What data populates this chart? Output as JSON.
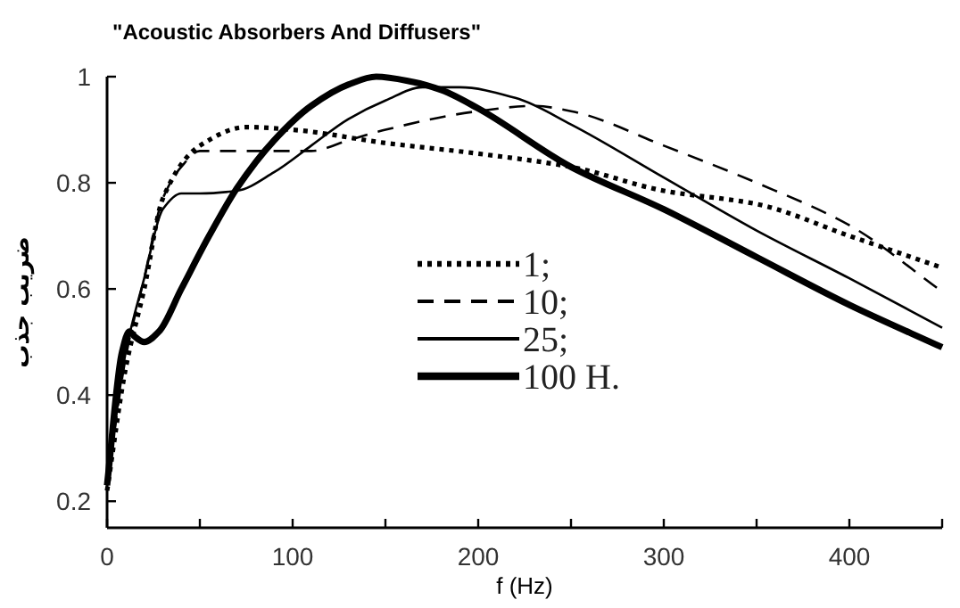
{
  "chart_data": {
    "type": "line",
    "title": "\"Acoustic Absorbers And Diffusers\"",
    "xlabel": "f (Hz)",
    "ylabel": "ضریب جذب",
    "xlim": [
      0,
      450
    ],
    "ylim": [
      0.15,
      1
    ],
    "xticks": [
      0,
      {
        "value": 50,
        "label": null
      },
      100,
      {
        "value": 150,
        "label": null
      },
      200,
      {
        "value": 250,
        "label": null
      },
      300,
      {
        "value": 350,
        "label": null
      },
      400,
      {
        "value": 450,
        "label": null
      }
    ],
    "yticks": [
      0.2,
      0.4,
      0.6,
      0.8,
      1
    ],
    "grid": false,
    "legend": "center",
    "series": [
      {
        "name": "1;",
        "color": "#000000",
        "line_style": "dotted",
        "x": [
          0,
          10,
          20,
          30,
          50,
          75,
          100,
          150,
          200,
          250,
          300,
          350,
          400,
          450
        ],
        "values": [
          0.22,
          0.45,
          0.6,
          0.77,
          0.87,
          0.905,
          0.9,
          0.875,
          0.855,
          0.83,
          0.785,
          0.76,
          0.7,
          0.64
        ]
      },
      {
        "name": "10;",
        "color": "#000000",
        "line_style": "dashed",
        "x": [
          0,
          10,
          20,
          30,
          40,
          50,
          80,
          110,
          130,
          150,
          200,
          230,
          250,
          300,
          350,
          400,
          450
        ],
        "values": [
          0.23,
          0.47,
          0.62,
          0.77,
          0.83,
          0.86,
          0.86,
          0.86,
          0.88,
          0.9,
          0.935,
          0.945,
          0.935,
          0.87,
          0.8,
          0.72,
          0.595
        ]
      },
      {
        "name": "25;",
        "color": "#000000",
        "line_style": "solid",
        "x": [
          0,
          10,
          20,
          30,
          40,
          50,
          70,
          90,
          110,
          130,
          150,
          170,
          190,
          220,
          250,
          300,
          350,
          400,
          450
        ],
        "values": [
          0.23,
          0.48,
          0.62,
          0.75,
          0.78,
          0.78,
          0.785,
          0.82,
          0.87,
          0.92,
          0.955,
          0.98,
          0.98,
          0.96,
          0.91,
          0.81,
          0.71,
          0.62,
          0.527
        ]
      },
      {
        "name": "100 H.",
        "color": "#000000",
        "line_style": "solid",
        "x": [
          0,
          8,
          12,
          15,
          20,
          28,
          40,
          55,
          70,
          90,
          110,
          130,
          145,
          165,
          180,
          200,
          250,
          300,
          350,
          400,
          450
        ],
        "values": [
          0.23,
          0.48,
          0.52,
          0.51,
          0.5,
          0.52,
          0.6,
          0.7,
          0.79,
          0.88,
          0.945,
          0.985,
          1.0,
          0.99,
          0.975,
          0.94,
          0.83,
          0.75,
          0.66,
          0.57,
          0.49
        ]
      }
    ]
  }
}
